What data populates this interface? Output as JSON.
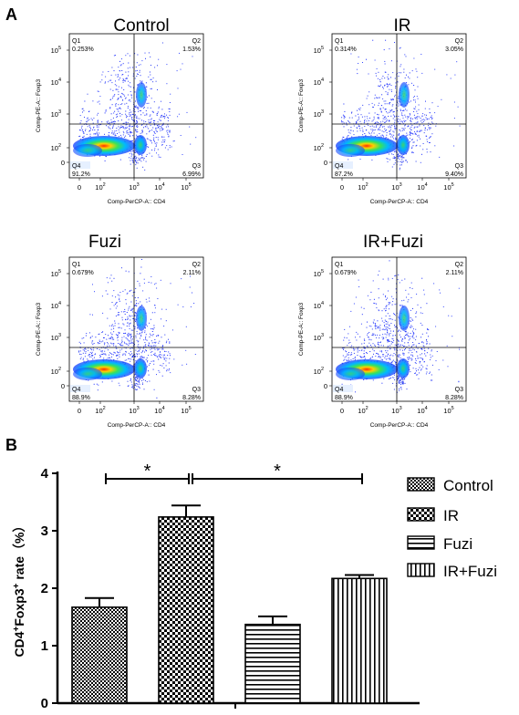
{
  "panels": {
    "A": "A",
    "B": "B"
  },
  "flow_plots": [
    {
      "title": "Control",
      "q1_name": "Q1",
      "q1": "0.253%",
      "q2_name": "Q2",
      "q2": "1.53%",
      "q3_name": "Q3",
      "q3": "6.99%",
      "q4_name": "Q4",
      "q4": "91.2%"
    },
    {
      "title": "IR",
      "q1_name": "Q1",
      "q1": "0.314%",
      "q2_name": "Q2",
      "q2": "3.05%",
      "q3_name": "Q3",
      "q3": "9.40%",
      "q4_name": "Q4",
      "q4": "87.2%"
    },
    {
      "title": "Fuzi",
      "q1_name": "Q1",
      "q1": "0.679%",
      "q2_name": "Q2",
      "q2": "2.11%",
      "q3_name": "Q3",
      "q3": "8.28%",
      "q4_name": "Q4",
      "q4": "88.9%"
    },
    {
      "title": "IR+Fuzi",
      "q1_name": "Q1",
      "q1": "0.679%",
      "q2_name": "Q2",
      "q2": "2.11%",
      "q3_name": "Q3",
      "q3": "8.28%",
      "q4_name": "Q4",
      "q4": "88.9%"
    }
  ],
  "flow_axes": {
    "xlabel": "Comp-PerCP-A:: CD4",
    "ylabel": "Comp-PE-A:: Foxp3",
    "x_ticks": [
      "0",
      "10",
      "10",
      "10",
      "10"
    ],
    "x_exps": [
      "",
      "2",
      "3",
      "4",
      "5"
    ],
    "y_ticks": [
      "0",
      "10",
      "10",
      "10",
      "10"
    ],
    "y_exps": [
      "",
      "2",
      "3",
      "4",
      "5"
    ]
  },
  "chart_data": {
    "type": "bar",
    "ylabel_parts": [
      "CD4",
      "+",
      "Foxp3",
      "+",
      " rate（%）"
    ],
    "ylim": [
      0,
      4
    ],
    "yticks": [
      0,
      1,
      2,
      3,
      4
    ],
    "categories": [
      "Control",
      "IR",
      "Fuzi",
      "IR+Fuzi"
    ],
    "values": [
      1.67,
      3.24,
      1.37,
      2.17
    ],
    "errors": [
      0.16,
      0.2,
      0.14,
      0.06
    ],
    "legend_position": "right",
    "significance": [
      {
        "from": 0,
        "to": 1,
        "label": "*"
      },
      {
        "from": 1,
        "to": 3,
        "label": "*"
      }
    ]
  }
}
